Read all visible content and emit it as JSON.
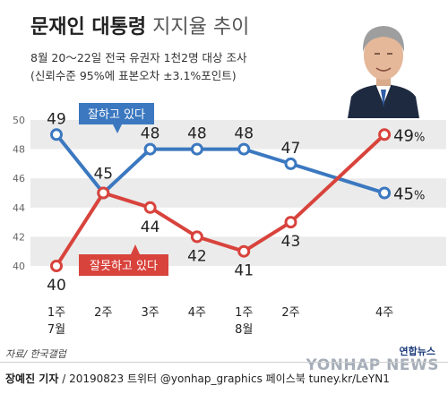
{
  "header": {
    "title_bold": "문재인 대통령",
    "title_light": "지지율 추이",
    "survey_line": "8월 20～22일 전국 유권자 1천2명 대상 조사",
    "margin_line": "(신뢰수준 95%에 표본오차 ±3.1%포인트)"
  },
  "footer": {
    "source": "자료/ 한국갤럽",
    "credit_name": "장예진 기자",
    "credit_rest": " / 20190823 트위터 @yonhap_graphics  페이스북 tuney.kr/LeYN1",
    "brand_small": "연합뉴스",
    "brand_big": "YONHAP NEWS"
  },
  "colors": {
    "approve": "#3b78c0",
    "disapprove": "#d8433c",
    "band": "#ebebeb"
  },
  "chart_data": {
    "type": "line",
    "title": "문재인 대통령 지지율 추이",
    "categories": [
      "1주 7월",
      "2주",
      "3주",
      "4주",
      "1주 8월",
      "2주",
      "4주"
    ],
    "x_labels": [
      [
        "1주",
        "7월"
      ],
      [
        "2주"
      ],
      [
        "3주"
      ],
      [
        "4주"
      ],
      [
        "1주",
        "8월"
      ],
      [
        "2주"
      ],
      [
        "4주"
      ]
    ],
    "x_positions": [
      0,
      1,
      2,
      3,
      4,
      5,
      7
    ],
    "yticks": [
      40,
      42,
      44,
      46,
      48,
      50
    ],
    "ylim": [
      40,
      50
    ],
    "grid": "alternating horizontal bands",
    "series": [
      {
        "name": "잘하고 있다",
        "values": [
          49,
          45,
          48,
          48,
          48,
          47,
          45
        ],
        "labels": [
          "49",
          "45",
          "48",
          "48",
          "48",
          "47",
          "45%"
        ]
      },
      {
        "name": "잘못하고 있다",
        "values": [
          40,
          45,
          44,
          42,
          41,
          43,
          49
        ],
        "labels": [
          "40",
          "",
          "44",
          "42",
          "41",
          "43",
          "49%"
        ]
      }
    ]
  }
}
